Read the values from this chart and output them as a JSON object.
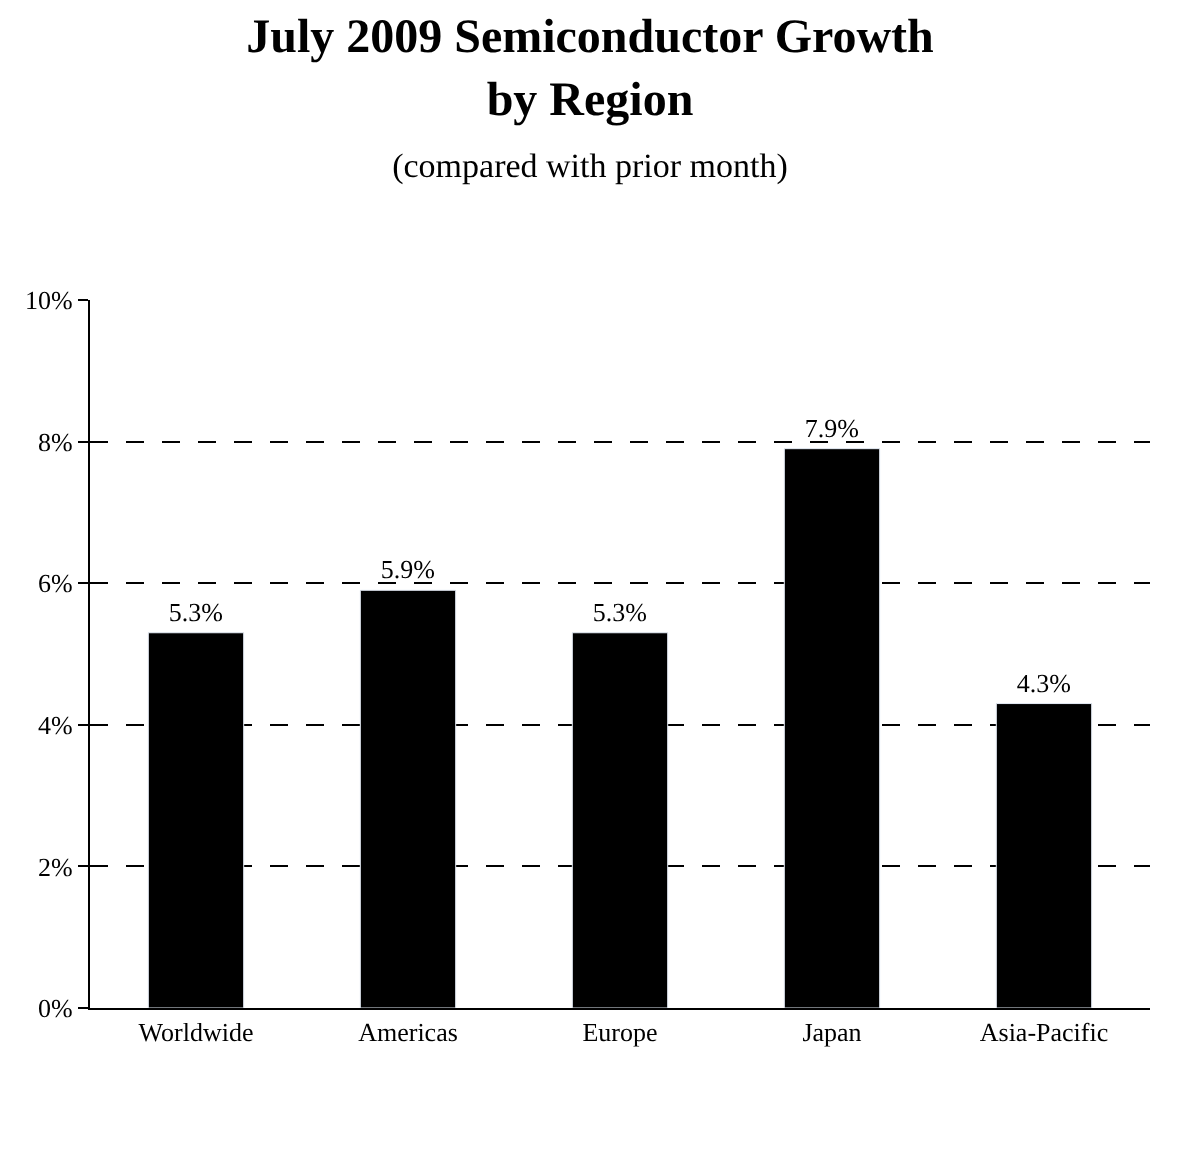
{
  "chart_data": {
    "type": "bar",
    "title": "July 2009 Semiconductor Growth by Region",
    "subtitle": "(compared with prior month)",
    "categories": [
      "Worldwide",
      "Americas",
      "Europe",
      "Japan",
      "Asia-Pacific"
    ],
    "values": [
      5.3,
      5.9,
      5.3,
      7.9,
      4.3
    ],
    "value_labels": [
      "5.3%",
      "5.9%",
      "5.3%",
      "7.9%",
      "4.3%"
    ],
    "color": "#000000",
    "ylim": [
      0,
      10
    ],
    "yticks": [
      {
        "value": 0,
        "label": "0%"
      },
      {
        "value": 2,
        "label": "2%"
      },
      {
        "value": 4,
        "label": "4%"
      },
      {
        "value": 6,
        "label": "6%"
      },
      {
        "value": 8,
        "label": "8%"
      },
      {
        "value": 10,
        "label": "10%"
      }
    ],
    "grid": "y",
    "line_style": "dashed",
    "legend": false
  }
}
